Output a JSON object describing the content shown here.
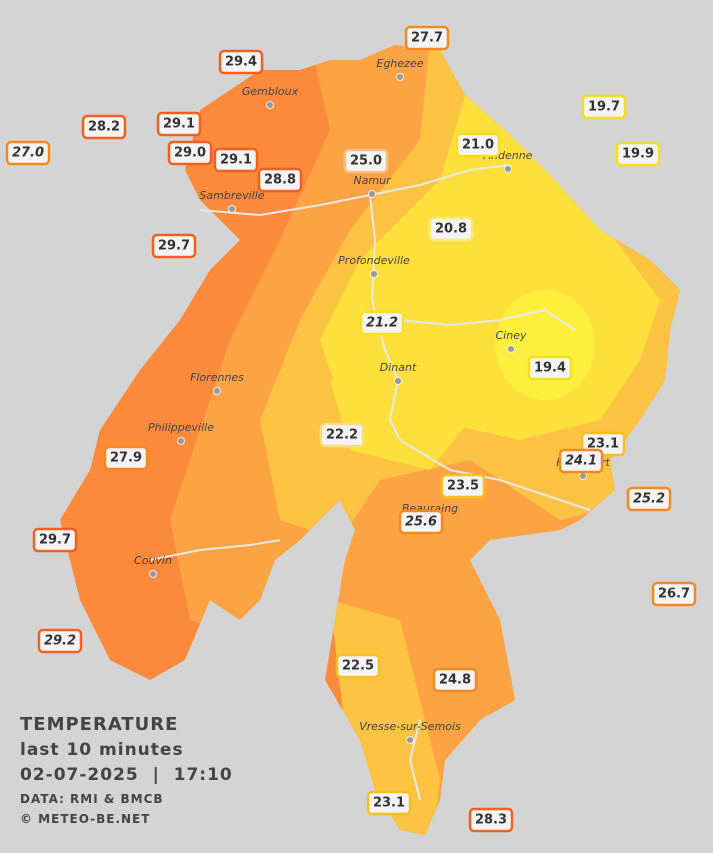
{
  "title": {
    "heading": "TEMPERATURE",
    "subheading": "last 10 minutes",
    "timestamp": "02-07-2025  |  17:10",
    "source": "DATA: RMI & BMCB",
    "credit": "© METEO-BE.NET"
  },
  "towns": [
    "Eghezee",
    "Gembloux",
    "Andenne",
    "Namur",
    "Sambreville",
    "Profondeville",
    "Ciney",
    "Dinant",
    "Florennes",
    "Philippeville",
    "Rochefort",
    "Beauraing",
    "Couvin",
    "Vresse-sur-Semois"
  ],
  "stations": [
    {
      "value": "29.4",
      "color": "#f0601e",
      "italic": false
    },
    {
      "value": "27.7",
      "color": "#f5891e",
      "italic": false
    },
    {
      "value": "19.7",
      "color": "#f5e020",
      "italic": false
    },
    {
      "value": "28.2",
      "color": "#f0601e",
      "italic": false
    },
    {
      "value": "29.1",
      "color": "#f0601e",
      "italic": false
    },
    {
      "value": "27.0",
      "color": "#f5891e",
      "italic": true
    },
    {
      "value": "29.0",
      "color": "#f0601e",
      "italic": false
    },
    {
      "value": "29.1",
      "color": "#f0601e",
      "italic": false
    },
    {
      "value": "25.0",
      "color": "#f8c080",
      "italic": false
    },
    {
      "value": "21.0",
      "color": "#f5e020",
      "italic": false
    },
    {
      "value": "19.9",
      "color": "#f5e020",
      "italic": false
    },
    {
      "value": "28.8",
      "color": "#f0601e",
      "italic": false
    },
    {
      "value": "20.8",
      "color": "#f8e880",
      "italic": false
    },
    {
      "value": "29.7",
      "color": "#f0601e",
      "italic": false
    },
    {
      "value": "21.2",
      "color": "#f5e020",
      "italic": true
    },
    {
      "value": "19.4",
      "color": "#f5e020",
      "italic": false
    },
    {
      "value": "22.2",
      "color": "#f8e080",
      "italic": false
    },
    {
      "value": "23.1",
      "color": "#f5c020",
      "italic": false
    },
    {
      "value": "24.1",
      "color": "#f5891e",
      "italic": true
    },
    {
      "value": "27.9",
      "color": "#f5891e",
      "italic": false
    },
    {
      "value": "23.5",
      "color": "#f5c020",
      "italic": false
    },
    {
      "value": "25.2",
      "color": "#f5891e",
      "italic": true
    },
    {
      "value": "25.6",
      "color": "#f5891e",
      "italic": true
    },
    {
      "value": "29.7",
      "color": "#f0601e",
      "italic": false
    },
    {
      "value": "26.7",
      "color": "#f5891e",
      "italic": false
    },
    {
      "value": "29.2",
      "color": "#f0601e",
      "italic": true
    },
    {
      "value": "22.5",
      "color": "#f5c020",
      "italic": false
    },
    {
      "value": "24.8",
      "color": "#f5891e",
      "italic": false
    },
    {
      "value": "23.1",
      "color": "#f5c020",
      "italic": false
    },
    {
      "value": "28.3",
      "color": "#f0601e",
      "italic": false
    }
  ]
}
